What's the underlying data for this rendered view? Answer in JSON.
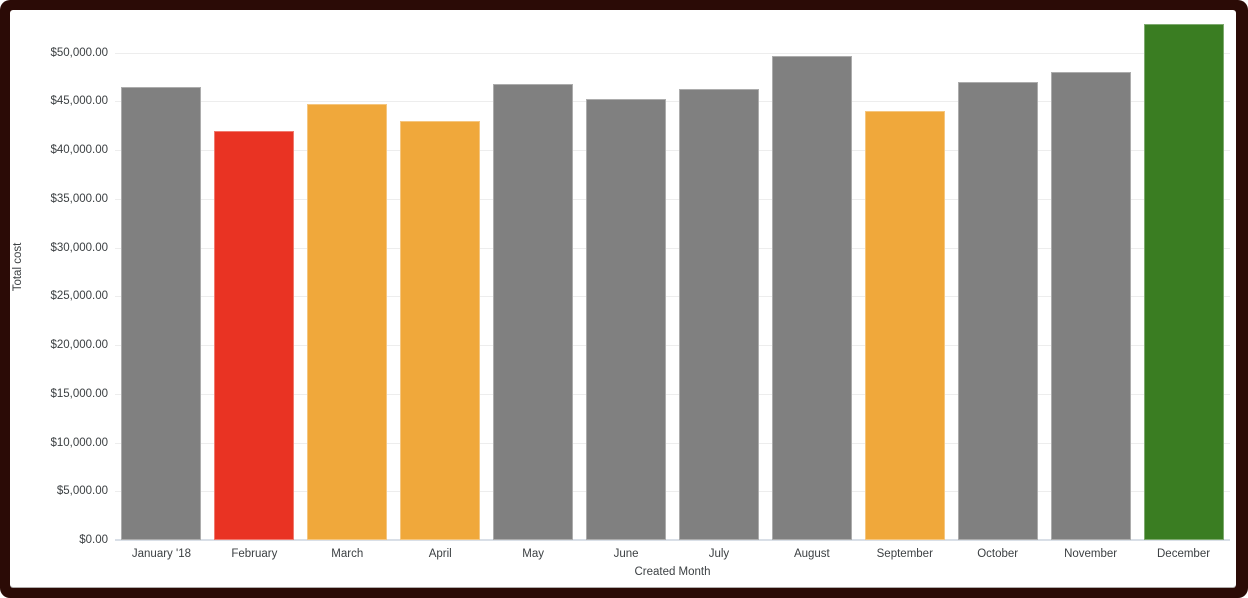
{
  "frame": {
    "border_color": "#2b0b06",
    "card_color": "#ffffff",
    "grid_color": "#ededed",
    "baseline_color": "#d9dfe7",
    "label_color": "#3c4043"
  },
  "chart_data": {
    "type": "bar",
    "title": "",
    "xlabel": "Created Month",
    "ylabel": "Total cost",
    "categories": [
      "January '18",
      "February",
      "March",
      "April",
      "May",
      "June",
      "July",
      "August",
      "September",
      "October",
      "November",
      "December"
    ],
    "values": [
      46500,
      42000,
      44700,
      43000,
      46800,
      45200,
      46300,
      49700,
      44000,
      47000,
      48000,
      52900
    ],
    "colors": [
      "#808080",
      "#e93323",
      "#f0a83b",
      "#f0a83b",
      "#808080",
      "#808080",
      "#808080",
      "#808080",
      "#f0a83b",
      "#808080",
      "#808080",
      "#3a7d22"
    ],
    "series_color_legend": {
      "default_gray": "#808080",
      "low_red": "#e93323",
      "warning_orange": "#f0a83b",
      "high_green": "#3a7d22"
    },
    "y_tick_values": [
      0,
      5000,
      10000,
      15000,
      20000,
      25000,
      30000,
      35000,
      40000,
      45000,
      50000
    ],
    "y_tick_labels": [
      "$0.00",
      "$5,000.00",
      "$10,000.00",
      "$15,000.00",
      "$20,000.00",
      "$25,000.00",
      "$30,000.00",
      "$35,000.00",
      "$40,000.00",
      "$45,000.00",
      "$50,000.00"
    ],
    "ylim": [
      0,
      53000
    ],
    "grid": true,
    "legend_position": "none"
  }
}
